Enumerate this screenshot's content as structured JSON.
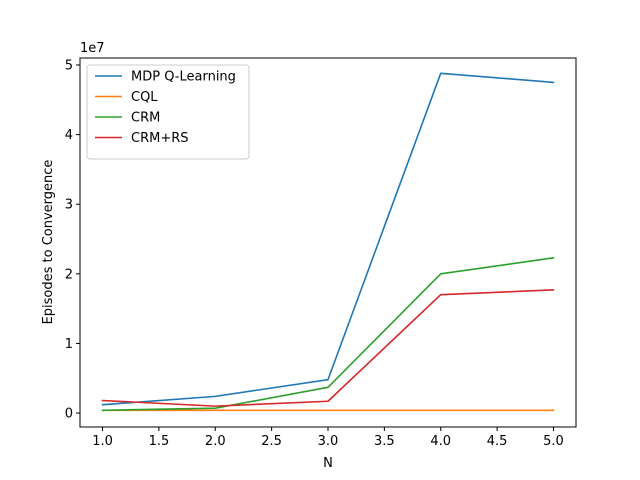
{
  "chart_data": {
    "type": "line",
    "title": "",
    "xlabel": "N",
    "ylabel": "Episodes to Convergence",
    "y_offset_label": "1e7",
    "y_scale_factor": 10000000,
    "xlim": [
      0.8,
      5.2
    ],
    "ylim": [
      -2000000,
      51000000
    ],
    "x_ticks": [
      1.0,
      1.5,
      2.0,
      2.5,
      3.0,
      3.5,
      4.0,
      4.5,
      5.0
    ],
    "x_tick_labels": [
      "1.0",
      "1.5",
      "2.0",
      "2.5",
      "3.0",
      "3.5",
      "4.0",
      "4.5",
      "5.0"
    ],
    "y_ticks": [
      0,
      10000000,
      20000000,
      30000000,
      40000000,
      50000000
    ],
    "y_tick_labels": [
      "0",
      "1",
      "2",
      "3",
      "4",
      "5"
    ],
    "grid": false,
    "legend_position": "top-left",
    "x": [
      1,
      2,
      3,
      4,
      5
    ],
    "series": [
      {
        "name": "MDP Q-Learning",
        "color": "#1f77b4",
        "values": [
          1200000,
          2400000,
          4800000,
          48800000,
          47500000
        ]
      },
      {
        "name": "CQL",
        "color": "#ff7f0e",
        "values": [
          400000,
          400000,
          400000,
          400000,
          400000
        ]
      },
      {
        "name": "CRM",
        "color": "#2ca02c",
        "values": [
          400000,
          700000,
          3700000,
          20000000,
          22300000
        ]
      },
      {
        "name": "CRM+RS",
        "color": "#d62728",
        "values": [
          1800000,
          1000000,
          1700000,
          17000000,
          17700000
        ]
      }
    ]
  }
}
